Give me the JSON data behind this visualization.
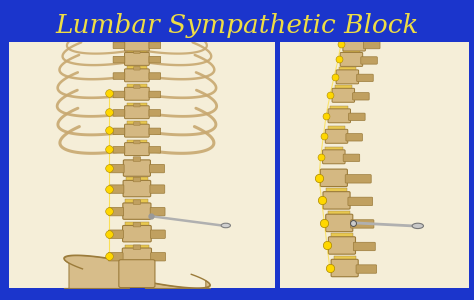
{
  "title": "Lumbar Sympathetic Block",
  "title_color": "#EEDD44",
  "title_fontsize": 19,
  "background_color": "#1B35CC",
  "fig_width": 4.74,
  "fig_height": 3.0,
  "dpi": 100,
  "panel_bg_left": "#F5EED8",
  "panel_bg_right": "#F5EED8",
  "bone_color": "#D4B882",
  "bone_edge": "#9B7B3A",
  "bone_dark": "#C0A060",
  "nerve_yellow": "#FFD700",
  "needle_color": "#B0B0B0",
  "needle_hub": "#888888",
  "rib_color": "#C8A870",
  "rib_edge": "#9B7B3A",
  "pelvis_color": "#D4B882",
  "disc_color": "#E8C850"
}
